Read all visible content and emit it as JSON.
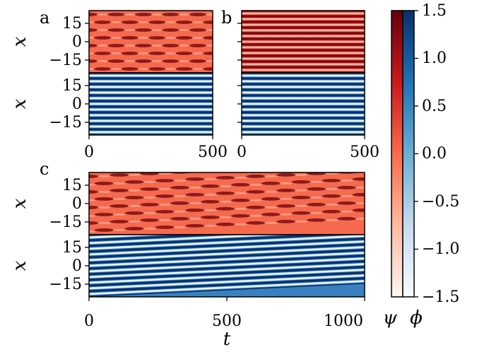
{
  "chart_data": [
    {
      "type": "heatmap",
      "panel_label": "a",
      "xlabel": "",
      "ylabel": "x",
      "xlim": [
        0,
        500
      ],
      "ylim": [
        -24,
        24
      ],
      "x_ticks": [
        "0",
        "500"
      ],
      "y_ticks": [
        "15",
        "0",
        "−15"
      ],
      "subplots": [
        {
          "field": "psi",
          "colormap": "Reds",
          "pattern": "spotted stripes",
          "stripes": 8,
          "spot_period": 110,
          "drift": 0
        },
        {
          "field": "phi",
          "colormap": "Blues",
          "pattern": "stripes",
          "stripes": 11,
          "drift": 0
        }
      ]
    },
    {
      "type": "heatmap",
      "panel_label": "b",
      "xlabel": "",
      "ylabel": "",
      "xlim": [
        0,
        500
      ],
      "ylim": [
        -24,
        24
      ],
      "x_ticks": [
        "0",
        "500"
      ],
      "y_ticks": [],
      "subplots": [
        {
          "field": "psi",
          "colormap": "Reds",
          "pattern": "stripes",
          "stripes": 11,
          "drift": 0
        },
        {
          "field": "phi",
          "colormap": "Blues",
          "pattern": "stripes",
          "stripes": 11,
          "drift": 0
        }
      ]
    },
    {
      "type": "heatmap",
      "panel_label": "c",
      "xlabel": "t",
      "ylabel": "x",
      "xlim": [
        0,
        1000
      ],
      "ylim": [
        -24,
        24
      ],
      "x_ticks": [
        "0",
        "500",
        "1000"
      ],
      "y_ticks": [
        "15",
        "0",
        "−15"
      ],
      "subplots": [
        {
          "field": "psi",
          "colormap": "Reds",
          "pattern": "spotted stripes",
          "stripes": 8,
          "spot_period": 110,
          "drift": 10
        },
        {
          "field": "phi",
          "colormap": "Blues",
          "pattern": "stripes",
          "stripes": 11,
          "drift": 10
        }
      ]
    },
    {
      "type": "colorbar",
      "range": [
        -1.5,
        1.5
      ],
      "ticks": [
        "1.5",
        "1.0",
        "0.5",
        "0.0",
        "−0.5",
        "−1.0",
        "−1.5"
      ],
      "labels": [
        "ψ",
        "ϕ"
      ],
      "colormaps": [
        "Reds",
        "Blues"
      ]
    }
  ]
}
